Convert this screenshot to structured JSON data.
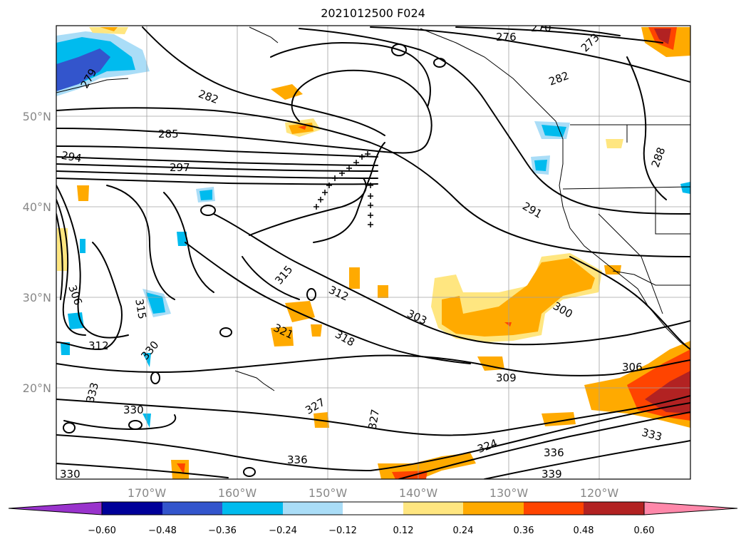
{
  "title": "2021012500 F024",
  "map": {
    "lon_range": [
      -180,
      -110
    ],
    "lat_range": [
      10,
      60
    ],
    "grid": true,
    "lon_labels": [
      "170°W",
      "160°W",
      "150°W",
      "140°W",
      "130°W",
      "120°W"
    ],
    "lat_labels": [
      "50°N",
      "40°N",
      "30°N",
      "20°N"
    ]
  },
  "contour_labels": [
    "279",
    "282",
    "285",
    "294",
    "297",
    "276",
    "273",
    "270",
    "282",
    "288",
    "291",
    "300",
    "303",
    "306",
    "309",
    "312",
    "315",
    "318",
    "321",
    "324",
    "327",
    "327",
    "330",
    "330",
    "330",
    "333",
    "333",
    "336",
    "336",
    "339",
    "312",
    "306",
    "315"
  ],
  "colorbar": {
    "colors": [
      "#9933cc",
      "#000099",
      "#3355cc",
      "#00bbee",
      "#aaddf7",
      "#ffffff",
      "#ffe680",
      "#ffaa00",
      "#ff4400",
      "#b22222",
      "#ff88aa"
    ],
    "tick_labels": [
      "−0.60",
      "−0.48",
      "−0.36",
      "−0.24",
      "−0.12",
      "0.12",
      "0.24",
      "0.36",
      "0.48",
      "0.60"
    ]
  }
}
